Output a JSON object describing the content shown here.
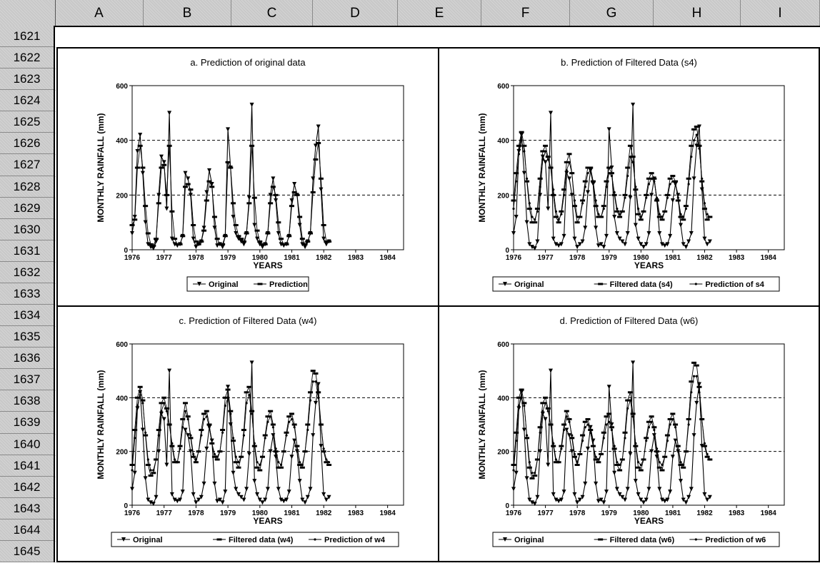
{
  "spreadsheet": {
    "columns": [
      "A",
      "B",
      "C",
      "D",
      "E",
      "F",
      "G",
      "H",
      "I"
    ],
    "rows": [
      "1621",
      "1622",
      "1623",
      "1624",
      "1625",
      "1626",
      "1627",
      "1628",
      "1629",
      "1630",
      "1631",
      "1632",
      "1633",
      "1634",
      "1635",
      "1636",
      "1637",
      "1638",
      "1639",
      "1640",
      "1641",
      "1642",
      "1643",
      "1644",
      "1645"
    ]
  },
  "chart_data": [
    {
      "type": "line",
      "title": "a. Prediction of original data",
      "xlabel": "YEARS",
      "ylabel": "MONTHLY RAINFALL (mm)",
      "ylim": [
        0,
        600
      ],
      "yticks": [
        0,
        200,
        400,
        600
      ],
      "xlim": [
        1976,
        1984.5
      ],
      "xticks": [
        "1976",
        "1977",
        "1978",
        "1979",
        "1980",
        "1981",
        "1982",
        "1983",
        "1984"
      ],
      "reference_lines": [
        200,
        400
      ],
      "legend": [
        "Original",
        "Prediction"
      ],
      "series": [
        {
          "name": "Original",
          "x_start": 1976,
          "step": 0.0833,
          "values": [
            60,
            120,
            360,
            420,
            280,
            100,
            20,
            10,
            5,
            30,
            200,
            340,
            320,
            150,
            500,
            40,
            20,
            15,
            20,
            50,
            280,
            260,
            200,
            40,
            10,
            20,
            30,
            80,
            210,
            290,
            240,
            80,
            15,
            20,
            10,
            50,
            440,
            300,
            120,
            60,
            40,
            30,
            20,
            60,
            190,
            530,
            90,
            40,
            20,
            10,
            20,
            60,
            200,
            260,
            180,
            60,
            20,
            15,
            20,
            50,
            180,
            240,
            200,
            90,
            20,
            10,
            30,
            60,
            260,
            380,
            450,
            220,
            40,
            20,
            30
          ]
        },
        {
          "name": "Prediction",
          "x_start": 1976,
          "step": 0.0833,
          "values": [
            90,
            110,
            300,
            380,
            300,
            160,
            60,
            20,
            15,
            40,
            170,
            300,
            310,
            200,
            380,
            140,
            40,
            20,
            20,
            50,
            230,
            240,
            220,
            90,
            30,
            20,
            30,
            70,
            180,
            250,
            230,
            120,
            40,
            20,
            20,
            50,
            320,
            300,
            170,
            90,
            50,
            40,
            30,
            60,
            170,
            380,
            190,
            70,
            30,
            20,
            20,
            60,
            170,
            230,
            200,
            100,
            40,
            20,
            20,
            50,
            160,
            210,
            200,
            120,
            40,
            20,
            30,
            60,
            210,
            330,
            390,
            260,
            90,
            30,
            30
          ]
        }
      ]
    },
    {
      "type": "line",
      "title": "b. Prediction of Filtered Data (s4)",
      "xlabel": "YEARS",
      "ylabel": "MONTHLY RAINFALL (mm)",
      "ylim": [
        0,
        600
      ],
      "yticks": [
        0,
        200,
        400,
        600
      ],
      "xlim": [
        1976,
        1984.5
      ],
      "xticks": [
        "1976",
        "1977",
        "1978",
        "1979",
        "1980",
        "1981",
        "1982",
        "1983",
        "1984"
      ],
      "reference_lines": [
        200,
        400
      ],
      "legend": [
        "Original",
        "Filtered data (s4)",
        "Prediction of s4"
      ],
      "series": [
        {
          "name": "Original",
          "x_start": 1976,
          "step": 0.0833,
          "values": [
            60,
            120,
            360,
            420,
            280,
            100,
            20,
            10,
            5,
            30,
            200,
            340,
            320,
            150,
            500,
            40,
            20,
            15,
            20,
            50,
            280,
            260,
            200,
            40,
            10,
            20,
            30,
            80,
            210,
            290,
            240,
            80,
            15,
            20,
            10,
            50,
            440,
            300,
            120,
            60,
            40,
            30,
            20,
            60,
            190,
            530,
            90,
            40,
            20,
            10,
            20,
            60,
            200,
            260,
            180,
            60,
            20,
            15,
            20,
            50,
            180,
            240,
            200,
            90,
            20,
            10,
            30,
            60,
            260,
            380,
            450,
            220,
            40,
            20,
            30
          ]
        },
        {
          "name": "Filtered data (s4)",
          "x_start": 1976,
          "step": 0.0833,
          "values": [
            180,
            280,
            380,
            430,
            380,
            250,
            150,
            100,
            100,
            150,
            260,
            360,
            380,
            340,
            300,
            200,
            120,
            100,
            140,
            220,
            320,
            350,
            280,
            160,
            100,
            120,
            180,
            250,
            300,
            300,
            250,
            160,
            120,
            120,
            160,
            250,
            300,
            280,
            200,
            140,
            120,
            140,
            200,
            300,
            380,
            340,
            220,
            130,
            110,
            140,
            200,
            260,
            280,
            260,
            180,
            120,
            110,
            140,
            200,
            260,
            270,
            250,
            180,
            120,
            110,
            160,
            260,
            380,
            440,
            450,
            380,
            250,
            150,
            110,
            120
          ]
        },
        {
          "name": "Prediction of s4",
          "x_start": 1976,
          "step": 0.0833,
          "values": [
            150,
            250,
            350,
            400,
            360,
            260,
            170,
            120,
            110,
            140,
            230,
            330,
            360,
            330,
            300,
            220,
            140,
            110,
            130,
            200,
            290,
            320,
            280,
            180,
            120,
            120,
            170,
            230,
            280,
            290,
            250,
            180,
            130,
            120,
            150,
            230,
            280,
            270,
            210,
            150,
            130,
            140,
            190,
            270,
            340,
            320,
            230,
            150,
            120,
            140,
            190,
            240,
            260,
            250,
            190,
            130,
            120,
            140,
            190,
            240,
            250,
            240,
            190,
            130,
            120,
            150,
            240,
            340,
            400,
            420,
            370,
            260,
            170,
            130,
            120
          ]
        }
      ]
    },
    {
      "type": "line",
      "title": "c. Prediction of Filtered Data (w4)",
      "xlabel": "YEARS",
      "ylabel": "MONTHLY RAINFALL (mm)",
      "ylim": [
        0,
        600
      ],
      "yticks": [
        0,
        200,
        400,
        600
      ],
      "xlim": [
        1976,
        1984.5
      ],
      "xticks": [
        "1976",
        "1977",
        "1978",
        "1979",
        "1980",
        "1981",
        "1982",
        "1983",
        "1984"
      ],
      "reference_lines": [
        200,
        400
      ],
      "legend": [
        "Original",
        "Filtered data (w4)",
        "Prediction of w4"
      ],
      "series": [
        {
          "name": "Original",
          "x_start": 1976,
          "step": 0.0833,
          "values": [
            60,
            120,
            360,
            420,
            280,
            100,
            20,
            10,
            5,
            30,
            200,
            340,
            320,
            150,
            500,
            40,
            20,
            15,
            20,
            50,
            280,
            260,
            200,
            40,
            10,
            20,
            30,
            80,
            210,
            290,
            240,
            80,
            15,
            20,
            10,
            50,
            440,
            300,
            120,
            60,
            40,
            30,
            20,
            60,
            190,
            530,
            90,
            40,
            20,
            10,
            20,
            60,
            200,
            260,
            180,
            60,
            20,
            15,
            20,
            50,
            180,
            240,
            200,
            90,
            20,
            10,
            30,
            60,
            260,
            380,
            450,
            220,
            40,
            20,
            30
          ]
        },
        {
          "name": "Filtered data (w4)",
          "x_start": 1976,
          "step": 0.0833,
          "values": [
            150,
            280,
            400,
            440,
            390,
            260,
            150,
            110,
            120,
            170,
            280,
            380,
            400,
            360,
            300,
            220,
            160,
            160,
            220,
            320,
            380,
            330,
            250,
            180,
            160,
            200,
            280,
            340,
            350,
            300,
            230,
            180,
            170,
            200,
            280,
            400,
            430,
            350,
            240,
            160,
            140,
            180,
            280,
            420,
            440,
            350,
            220,
            140,
            130,
            180,
            260,
            330,
            350,
            300,
            200,
            140,
            140,
            200,
            270,
            330,
            340,
            300,
            220,
            150,
            140,
            200,
            300,
            420,
            500,
            490,
            420,
            300,
            200,
            160,
            150
          ]
        },
        {
          "name": "Prediction of w4",
          "x_start": 1976,
          "step": 0.0833,
          "values": [
            130,
            250,
            370,
            410,
            380,
            270,
            170,
            130,
            130,
            170,
            260,
            350,
            380,
            350,
            300,
            230,
            170,
            160,
            210,
            290,
            350,
            320,
            260,
            190,
            170,
            200,
            260,
            320,
            330,
            290,
            230,
            190,
            180,
            200,
            270,
            370,
            400,
            340,
            250,
            180,
            160,
            180,
            260,
            380,
            410,
            340,
            230,
            160,
            150,
            180,
            250,
            310,
            330,
            290,
            210,
            160,
            150,
            200,
            260,
            310,
            320,
            290,
            220,
            160,
            150,
            200,
            280,
            390,
            460,
            460,
            400,
            300,
            210,
            170,
            160
          ]
        }
      ]
    },
    {
      "type": "line",
      "title": "d. Prediction of Filtered Data (w6)",
      "xlabel": "YEARS",
      "ylabel": "MONTHLY RAINFALL (mm)",
      "ylim": [
        0,
        600
      ],
      "yticks": [
        0,
        200,
        400,
        600
      ],
      "xlim": [
        1976,
        1984.5
      ],
      "xticks": [
        "1976",
        "1977",
        "1978",
        "1979",
        "1980",
        "1981",
        "1982",
        "1983",
        "1984"
      ],
      "reference_lines": [
        200,
        400
      ],
      "legend": [
        "Original",
        "Filtered data (w6)",
        "Prediction of w6"
      ],
      "series": [
        {
          "name": "Original",
          "x_start": 1976,
          "step": 0.0833,
          "values": [
            60,
            120,
            360,
            420,
            280,
            100,
            20,
            10,
            5,
            30,
            200,
            340,
            320,
            150,
            500,
            40,
            20,
            15,
            20,
            50,
            280,
            260,
            200,
            40,
            10,
            20,
            30,
            80,
            210,
            290,
            240,
            80,
            15,
            20,
            10,
            50,
            440,
            300,
            120,
            60,
            40,
            30,
            20,
            60,
            190,
            530,
            90,
            40,
            20,
            10,
            20,
            60,
            200,
            260,
            180,
            60,
            20,
            15,
            20,
            50,
            180,
            240,
            200,
            90,
            20,
            10,
            30,
            60,
            260,
            380,
            450,
            220,
            40,
            20,
            30
          ]
        },
        {
          "name": "Filtered data (w6)",
          "x_start": 1976,
          "step": 0.0833,
          "values": [
            150,
            270,
            400,
            430,
            380,
            250,
            140,
            100,
            110,
            170,
            290,
            380,
            400,
            360,
            300,
            220,
            160,
            160,
            220,
            300,
            350,
            320,
            250,
            180,
            150,
            190,
            260,
            310,
            320,
            280,
            220,
            170,
            160,
            190,
            270,
            330,
            340,
            290,
            210,
            150,
            130,
            170,
            270,
            390,
            420,
            340,
            220,
            140,
            130,
            170,
            250,
            310,
            330,
            290,
            200,
            140,
            130,
            180,
            260,
            320,
            340,
            300,
            220,
            150,
            140,
            200,
            320,
            460,
            530,
            520,
            440,
            320,
            220,
            180,
            170
          ]
        },
        {
          "name": "Prediction of w6",
          "x_start": 1976,
          "step": 0.0833,
          "values": [
            130,
            240,
            370,
            400,
            370,
            260,
            160,
            120,
            120,
            170,
            270,
            350,
            380,
            350,
            300,
            230,
            170,
            160,
            210,
            280,
            330,
            310,
            260,
            190,
            160,
            190,
            240,
            290,
            300,
            270,
            220,
            180,
            170,
            190,
            250,
            300,
            310,
            280,
            220,
            160,
            150,
            170,
            250,
            360,
            390,
            330,
            230,
            160,
            150,
            170,
            240,
            290,
            310,
            280,
            210,
            160,
            150,
            180,
            240,
            300,
            320,
            290,
            220,
            160,
            150,
            200,
            300,
            420,
            480,
            480,
            420,
            320,
            230,
            190,
            170
          ]
        }
      ]
    }
  ]
}
